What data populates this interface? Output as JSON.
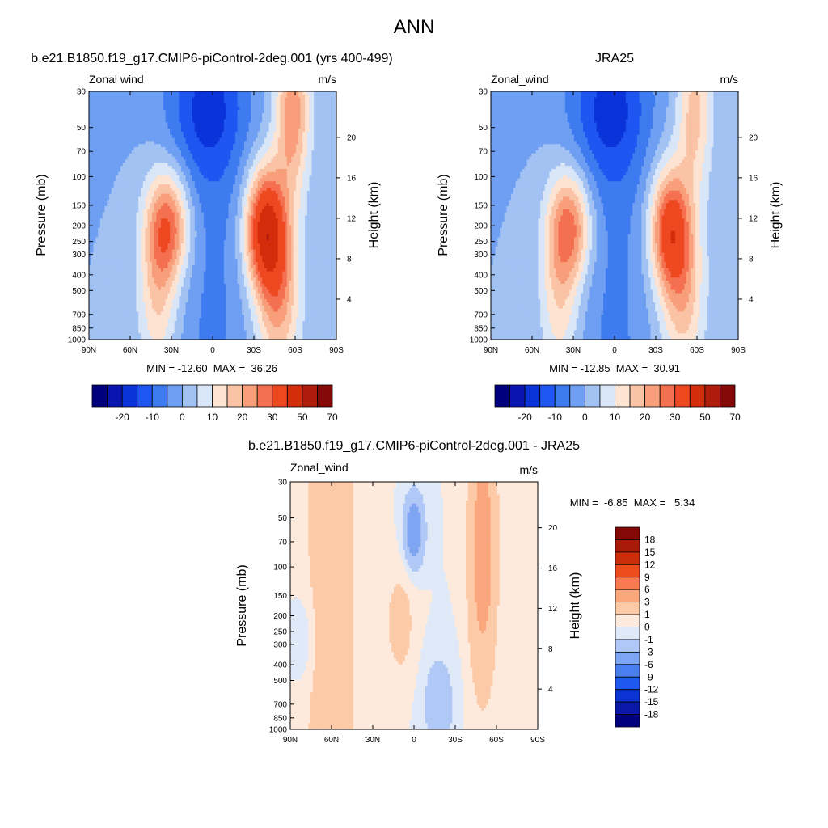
{
  "figure": {
    "title": "ANN"
  },
  "chart_data": [
    {
      "type": "heatmap",
      "title": "b.e21.B1850.f19_g17.CMIP6-piControl-2deg.001 (yrs 400-499)",
      "left_string": "Zonal wind",
      "right_string": "m/s",
      "ylabel": "Pressure (mb)",
      "ylabel_right": "Height (km)",
      "xticks": [
        "90N",
        "60N",
        "30N",
        "0",
        "30S",
        "60S",
        "90S"
      ],
      "yticks": [
        "30",
        "50",
        "70",
        "100",
        "150",
        "200",
        "250",
        "300",
        "400",
        "500",
        "700",
        "850",
        "1000"
      ],
      "yticks_right": [
        "20",
        "16",
        "12",
        "8",
        "4"
      ],
      "x_range": [
        90,
        -90
      ],
      "y_range_mb": [
        1000,
        30
      ],
      "y_scale": "log",
      "min": -12.6,
      "max": 36.26,
      "stats_text": "MIN = -12.60  MAX =  36.26",
      "colorbar_labels": [
        "-20",
        "-10",
        "0",
        "10",
        "20",
        "30",
        "50",
        "70"
      ],
      "levels": [
        -25,
        -20,
        -15,
        -10,
        -5,
        0,
        5,
        10,
        15,
        20,
        25,
        30,
        40,
        50,
        60,
        70
      ]
    },
    {
      "type": "heatmap",
      "title": "JRA25",
      "left_string": "Zonal_wind",
      "right_string": "m/s",
      "ylabel": "Pressure (mb)",
      "ylabel_right": "Height (km)",
      "xticks": [
        "90N",
        "60N",
        "30N",
        "0",
        "30S",
        "60S",
        "90S"
      ],
      "yticks": [
        "30",
        "50",
        "70",
        "100",
        "150",
        "200",
        "250",
        "300",
        "400",
        "500",
        "700",
        "850",
        "1000"
      ],
      "yticks_right": [
        "20",
        "16",
        "12",
        "8",
        "4"
      ],
      "x_range": [
        90,
        -90
      ],
      "y_range_mb": [
        1000,
        30
      ],
      "y_scale": "log",
      "min": -12.85,
      "max": 30.91,
      "stats_text": "MIN = -12.85  MAX =  30.91",
      "colorbar_labels": [
        "-20",
        "-10",
        "0",
        "10",
        "20",
        "30",
        "50",
        "70"
      ],
      "levels": [
        -25,
        -20,
        -15,
        -10,
        -5,
        0,
        5,
        10,
        15,
        20,
        25,
        30,
        40,
        50,
        60,
        70
      ]
    },
    {
      "type": "heatmap",
      "title": "b.e21.B1850.f19_g17.CMIP6-piControl-2deg.001 - JRA25",
      "left_string": "Zonal_wind",
      "right_string": "m/s",
      "ylabel": "Pressure (mb)",
      "ylabel_right": "Height (km)",
      "xticks": [
        "90N",
        "60N",
        "30N",
        "0",
        "30S",
        "60S",
        "90S"
      ],
      "yticks": [
        "30",
        "50",
        "70",
        "100",
        "150",
        "200",
        "250",
        "300",
        "400",
        "500",
        "700",
        "850",
        "1000"
      ],
      "yticks_right": [
        "20",
        "16",
        "12",
        "8",
        "4"
      ],
      "x_range": [
        90,
        -90
      ],
      "y_range_mb": [
        1000,
        30
      ],
      "y_scale": "log",
      "min": -6.85,
      "max": 5.34,
      "stats_text": "MIN =  -6.85  MAX =   5.34",
      "colorbar_labels": [
        "18",
        "15",
        "12",
        "9",
        "6",
        "3",
        "1",
        "0",
        "-1",
        "-3",
        "-6",
        "-9",
        "-12",
        "-15",
        "-18"
      ],
      "levels": [
        -18,
        -15,
        -12,
        -9,
        -6,
        -3,
        -1,
        0,
        1,
        3,
        6,
        9,
        12,
        15,
        18
      ]
    }
  ],
  "colormaps": {
    "absolute": [
      "#00007f",
      "#0a14b0",
      "#0b33da",
      "#1f55f0",
      "#3f7bf0",
      "#6e9ff2",
      "#a2c2f4",
      "#d8e6f7",
      "#fde3d2",
      "#fbc3a6",
      "#f89e7a",
      "#f47050",
      "#ee4820",
      "#d32d0c",
      "#b01c0b",
      "#850808"
    ],
    "difference": [
      "#00007f",
      "#0a17a8",
      "#0b33d3",
      "#1f58ee",
      "#4a7ef0",
      "#7ea5f2",
      "#b0c8f5",
      "#dfe9f8",
      "#fdeadd",
      "#fdcaa8",
      "#fba77e",
      "#f87a4e",
      "#ee4c1e",
      "#cc2e0b",
      "#aa1a0a",
      "#850808"
    ]
  }
}
